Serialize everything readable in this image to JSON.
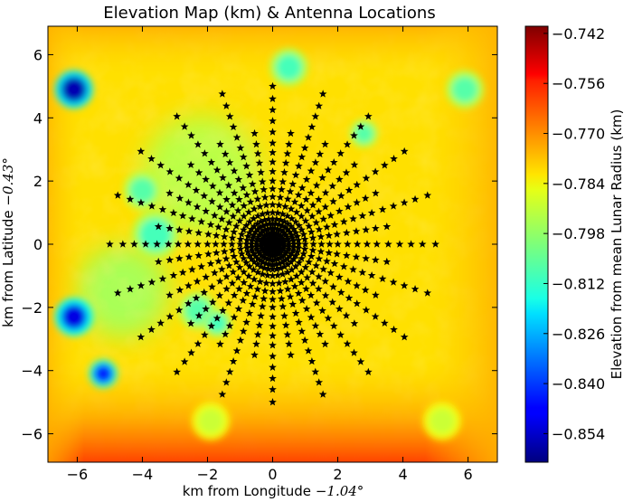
{
  "chart_data": [
    {
      "type": "heatmap",
      "title": "Elevation Map (km) & Antenna Locations",
      "xlabel_text": "km from Longitude",
      "xlabel_value": "−1.04°",
      "ylabel_text": "km from Latitude",
      "ylabel_value": "−0.43°",
      "xlim": [
        -6.9,
        6.9
      ],
      "ylim": [
        -6.9,
        6.9
      ],
      "xticks": [
        -6,
        -4,
        -2,
        0,
        2,
        4,
        6
      ],
      "xtick_labels": [
        "−6",
        "−4",
        "−2",
        "0",
        "2",
        "4",
        "6"
      ],
      "yticks": [
        6,
        4,
        2,
        0,
        -2,
        -4,
        -6
      ],
      "ytick_labels": [
        "6",
        "4",
        "2",
        "0",
        "−2",
        "−4",
        "−6"
      ],
      "grid": false,
      "colormap": "jet",
      "colorbar": {
        "label": "Elevation from mean Lunar Radius (km)",
        "min": -0.862,
        "max": -0.74,
        "ticks": [
          -0.742,
          -0.756,
          -0.77,
          -0.784,
          -0.798,
          -0.812,
          -0.826,
          -0.84,
          -0.854
        ],
        "tick_labels": [
          "−0.742",
          "−0.756",
          "−0.770",
          "−0.784",
          "−0.798",
          "−0.812",
          "−0.826",
          "−0.840",
          "−0.854"
        ]
      },
      "elevation_background": -0.782,
      "elevation_features": [
        {
          "x": -6.1,
          "y": 4.9,
          "value": -0.856,
          "radius": 0.4
        },
        {
          "x": -6.1,
          "y": -2.3,
          "value": -0.85,
          "radius": 0.4
        },
        {
          "x": -5.2,
          "y": -4.1,
          "value": -0.842,
          "radius": 0.3
        },
        {
          "x": 0.5,
          "y": 5.6,
          "value": -0.808,
          "radius": 0.4
        },
        {
          "x": 5.9,
          "y": 4.9,
          "value": -0.806,
          "radius": 0.4
        },
        {
          "x": -3.6,
          "y": 0.3,
          "value": -0.808,
          "radius": 0.5
        },
        {
          "x": -4.0,
          "y": 1.7,
          "value": -0.806,
          "radius": 0.4
        },
        {
          "x": -2.3,
          "y": -2.1,
          "value": -0.806,
          "radius": 0.4
        },
        {
          "x": -1.7,
          "y": -2.5,
          "value": -0.808,
          "radius": 0.3
        },
        {
          "x": 2.8,
          "y": 3.5,
          "value": -0.806,
          "radius": 0.3
        },
        {
          "x": -4.6,
          "y": -1.5,
          "value": -0.796,
          "radius": 1.4
        },
        {
          "x": -2.2,
          "y": 2.2,
          "value": -0.794,
          "radius": 1.8
        },
        {
          "x": -1.9,
          "y": -5.6,
          "value": -0.792,
          "radius": 0.4
        },
        {
          "x": 5.2,
          "y": -5.6,
          "value": -0.792,
          "radius": 0.4
        }
      ],
      "antennas": {
        "rings": [
          {
            "radius": 0.2,
            "count": 40
          },
          {
            "radius": 0.35,
            "count": 40
          },
          {
            "radius": 0.5,
            "count": 40
          },
          {
            "radius": 0.65,
            "count": 40
          },
          {
            "radius": 0.8,
            "count": 40
          },
          {
            "radius": 1.0,
            "count": 40
          },
          {
            "radius": 1.25,
            "count": 40
          },
          {
            "radius": 1.5,
            "count": 40
          },
          {
            "radius": 1.75,
            "count": 40
          },
          {
            "radius": 2.0,
            "count": 40
          },
          {
            "radius": 2.3,
            "count": 40
          },
          {
            "radius": 2.6,
            "count": 40
          },
          {
            "radius": 2.9,
            "count": 40
          },
          {
            "radius": 3.2,
            "count": 40
          },
          {
            "radius": 3.55,
            "count": 40
          },
          {
            "radius": 3.9,
            "count": 20
          },
          {
            "radius": 4.25,
            "count": 20
          },
          {
            "radius": 4.6,
            "count": 20
          },
          {
            "radius": 5.0,
            "count": 20
          }
        ],
        "marker": "star",
        "color": "#000000"
      }
    }
  ]
}
